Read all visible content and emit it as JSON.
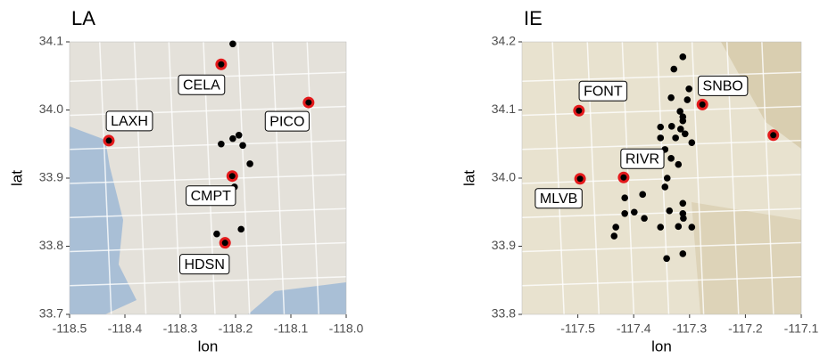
{
  "chart_data": [
    {
      "type": "scatter",
      "title": "LA",
      "x_label": "lon",
      "y_label": "lat",
      "xlim": [
        -118.5,
        -118.0
      ],
      "ylim": [
        33.7,
        34.1
      ],
      "xticks": [
        -118.5,
        -118.4,
        -118.3,
        -118.2,
        -118.1,
        {
          "value": -118,
          "label": "-118.0"
        }
      ],
      "yticks": [
        33.7,
        33.8,
        33.9,
        {
          "value": 34,
          "label": "34.0"
        },
        34.1
      ],
      "points": {
        "color": "#000000",
        "x": [
          -118.205,
          -118.226,
          -118.205,
          -118.187,
          -118.194,
          -118.174,
          -118.202,
          -118.19,
          -118.234
        ],
        "y": [
          34.097,
          33.95,
          33.958,
          33.948,
          33.963,
          33.921,
          33.887,
          33.825,
          33.818
        ]
      },
      "sites": {
        "color": "#e41a1c",
        "labels": [
          "CELA",
          "PICO",
          "LAXH",
          "CMPT",
          "HDSN"
        ],
        "x": [
          -118.226,
          -118.068,
          -118.429,
          -118.206,
          -118.219
        ],
        "y": [
          34.067,
          34.011,
          33.955,
          33.903,
          33.805
        ]
      }
    },
    {
      "type": "scatter",
      "title": "IE",
      "x_label": "lon",
      "y_label": "lat",
      "xlim": [
        -117.6,
        -117.1
      ],
      "ylim": [
        33.8,
        34.2
      ],
      "xticks": [
        -117.5,
        -117.4,
        -117.3,
        -117.2,
        -117.1
      ],
      "yticks": [
        33.8,
        33.9,
        {
          "value": 34,
          "label": "34.0"
        },
        34.1,
        34.2
      ],
      "points": {
        "color": "#000000",
        "x": [
          -117.312,
          -117.328,
          -117.301,
          -117.333,
          -117.304,
          -117.317,
          -117.312,
          -117.352,
          -117.332,
          -117.312,
          -117.316,
          -117.308,
          -117.325,
          -117.296,
          -117.352,
          -117.344,
          -117.333,
          -117.32,
          -117.34,
          -117.344,
          -117.384,
          -117.416,
          -117.399,
          -117.416,
          -117.432,
          -117.435,
          -117.381,
          -117.336,
          -117.312,
          -117.312,
          -117.311,
          -117.352,
          -117.32,
          -117.296,
          -117.312,
          -117.341
        ],
        "y": [
          34.178,
          34.16,
          34.131,
          34.118,
          34.115,
          34.098,
          34.09,
          34.075,
          34.076,
          34.084,
          34.072,
          34.065,
          34.059,
          34.052,
          34.059,
          34.042,
          34.029,
          34.02,
          34.0,
          33.987,
          33.976,
          33.971,
          33.95,
          33.948,
          33.928,
          33.915,
          33.941,
          33.952,
          33.963,
          33.948,
          33.941,
          33.928,
          33.929,
          33.928,
          33.889,
          33.882
        ]
      },
      "sites": {
        "color": "#e41a1c",
        "labels": [
          "FONT",
          "SNBO",
          null,
          "RIVR",
          "MLVB"
        ],
        "x": [
          -117.498,
          -117.277,
          -117.15,
          -117.418,
          -117.496
        ],
        "y": [
          34.099,
          34.108,
          34.063,
          34.001,
          33.999
        ]
      }
    }
  ]
}
